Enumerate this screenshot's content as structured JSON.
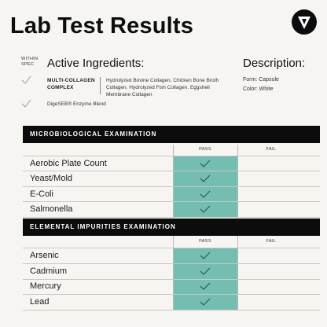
{
  "title": "Lab Test Results",
  "within_spec": "WITHIN SPEC",
  "active_ingredients": {
    "heading": "Active Ingredients:",
    "items": [
      {
        "name": "MULTI-COLLAGEN COMPLEX",
        "description": "Hydrolyzed Bovine Collagen, Chicken Bone Broth Collagen, Hydrolyzed Fish Collagen, Eggshell Membrane Collagen"
      },
      {
        "name": "DigeSEB® Enzyme Blend",
        "description": ""
      }
    ]
  },
  "description": {
    "heading": "Description:",
    "form": "Form: Capsule",
    "color": "Color: White"
  },
  "microbiological": {
    "heading": "MICROBIOLOGICAL EXAMINATION",
    "pass_label": "PASS",
    "fail_label": "FAIL",
    "rows": [
      {
        "name": "Aerobic Plate Count",
        "result": "pass"
      },
      {
        "name": "Yeast/Mold",
        "result": "pass"
      },
      {
        "name": "E-Coli",
        "result": "pass"
      },
      {
        "name": "Salmonella",
        "result": "pass"
      }
    ]
  },
  "elemental": {
    "heading": "ELEMENTAL IMPURITIES EXAMINATION",
    "pass_label": "PASS",
    "fail_label": "FAIL",
    "rows": [
      {
        "name": "Arsenic",
        "result": "pass"
      },
      {
        "name": "Cadmium",
        "result": "pass"
      },
      {
        "name": "Mercury",
        "result": "pass"
      },
      {
        "name": "Lead",
        "result": "pass"
      }
    ]
  },
  "colors": {
    "background": "#f6f5f1",
    "pass_fill": "#73bdb1",
    "header_bar": "#0c0c0c"
  },
  "icons": {
    "logo": "triangle-v-logo-icon",
    "check": "check-icon"
  }
}
